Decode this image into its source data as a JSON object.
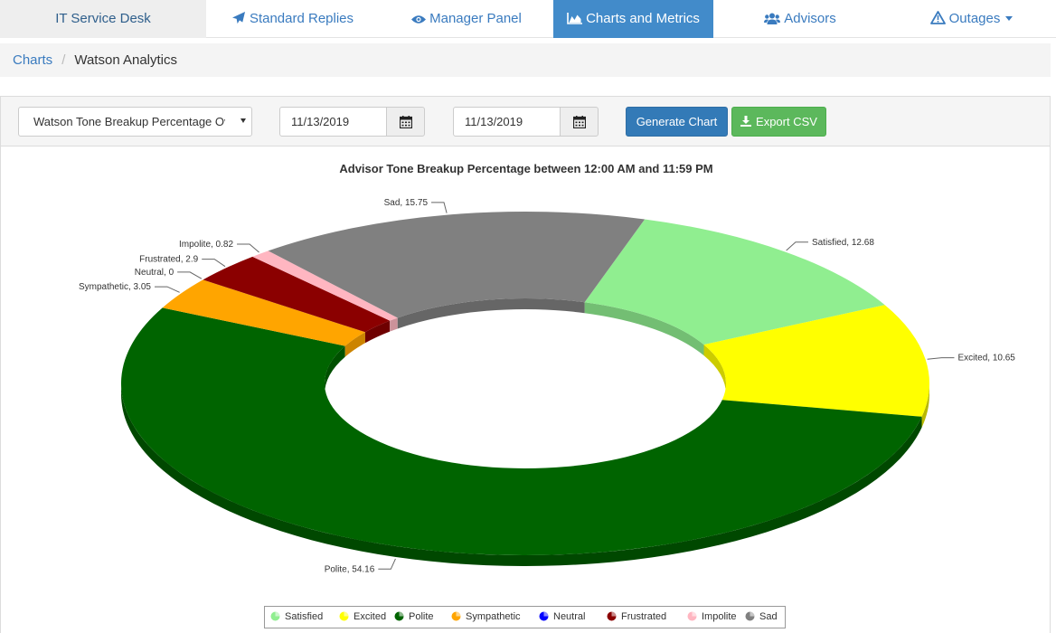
{
  "nav": {
    "brand": "IT Service Desk",
    "items": [
      {
        "label": "Standard Replies",
        "icon": "paper-plane-icon",
        "active": false
      },
      {
        "label": "Manager Panel",
        "icon": "eye-icon",
        "active": false
      },
      {
        "label": "Charts and Metrics",
        "icon": "area-chart-icon",
        "active": true
      },
      {
        "label": "Advisors",
        "icon": "users-icon",
        "active": false
      },
      {
        "label": "Outages",
        "icon": "warning-triangle-icon",
        "active": false
      }
    ]
  },
  "breadcrumb": {
    "parent": "Charts",
    "current": "Watson Analytics"
  },
  "toolbar": {
    "report_select": "Watson Tone Breakup Percentage Ov",
    "start_date": "11/13/2019",
    "end_date": "11/13/2019",
    "generate_label": "Generate Chart",
    "export_label": "Export CSV"
  },
  "chart_data": {
    "type": "pie",
    "variant": "3d-donut",
    "title": "Advisor Tone Breakup Percentage between 12:00 AM and 11:59 PM",
    "legend_position": "bottom",
    "slices": [
      {
        "label": "Satisfied",
        "value": 12.68,
        "color": "#90ee90"
      },
      {
        "label": "Excited",
        "value": 10.65,
        "color": "#ffff00"
      },
      {
        "label": "Polite",
        "value": 54.16,
        "color": "#006400"
      },
      {
        "label": "Sympathetic",
        "value": 3.05,
        "color": "#ffa500"
      },
      {
        "label": "Neutral",
        "value": 0,
        "color": "#0000ff"
      },
      {
        "label": "Frustrated",
        "value": 2.9,
        "color": "#8b0000"
      },
      {
        "label": "Impolite",
        "value": 0.82,
        "color": "#ffb6c1"
      },
      {
        "label": "Sad",
        "value": 15.75,
        "color": "#808080"
      }
    ]
  }
}
